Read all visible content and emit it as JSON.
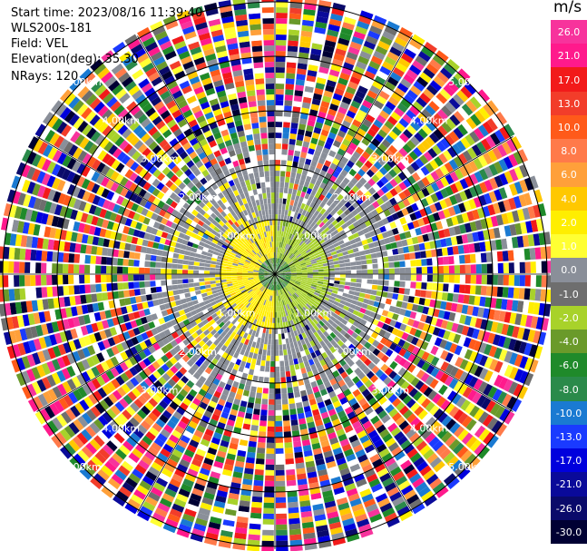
{
  "info": {
    "start_time": "Start time: 2023/08/16 11:39:40",
    "instrument": "WLS200s-181",
    "field": "Field: VEL",
    "elevation": "Elevation(deg): 35.30",
    "nrays": "NRays: 120"
  },
  "colorbar": {
    "unit": "m/s",
    "levels": [
      {
        "label": "26.0",
        "color": "#f7339c"
      },
      {
        "label": "21.0",
        "color": "#ff1a8c"
      },
      {
        "label": "17.0",
        "color": "#f21a1a"
      },
      {
        "label": "13.0",
        "color": "#f23d2a"
      },
      {
        "label": "10.0",
        "color": "#ff5a1a"
      },
      {
        "label": "8.0",
        "color": "#ff7a4a"
      },
      {
        "label": "6.0",
        "color": "#ffa03a"
      },
      {
        "label": "4.0",
        "color": "#ffc800"
      },
      {
        "label": "2.0",
        "color": "#ffee00"
      },
      {
        "label": "1.0",
        "color": "#ffff33"
      },
      {
        "label": "0.0",
        "color": "#8a8f99"
      },
      {
        "label": "-1.0",
        "color": "#6e6e6e"
      },
      {
        "label": "-2.0",
        "color": "#a8d22a"
      },
      {
        "label": "-4.0",
        "color": "#6a9a2a"
      },
      {
        "label": "-6.0",
        "color": "#1f8a2a"
      },
      {
        "label": "-8.0",
        "color": "#2a8a4a"
      },
      {
        "label": "-10.0",
        "color": "#1a7ad2"
      },
      {
        "label": "-13.0",
        "color": "#1a3aff"
      },
      {
        "label": "-17.0",
        "color": "#0000dd"
      },
      {
        "label": "-21.0",
        "color": "#0a0a9a"
      },
      {
        "label": "-26.0",
        "color": "#0a0a6a"
      },
      {
        "label": "-30.0",
        "color": "#000033"
      }
    ]
  },
  "rings": [
    {
      "label": "1.00km"
    },
    {
      "label": "2.00km"
    },
    {
      "label": "3.00km"
    },
    {
      "label": "4.00km"
    },
    {
      "label": "5.00km"
    }
  ]
}
